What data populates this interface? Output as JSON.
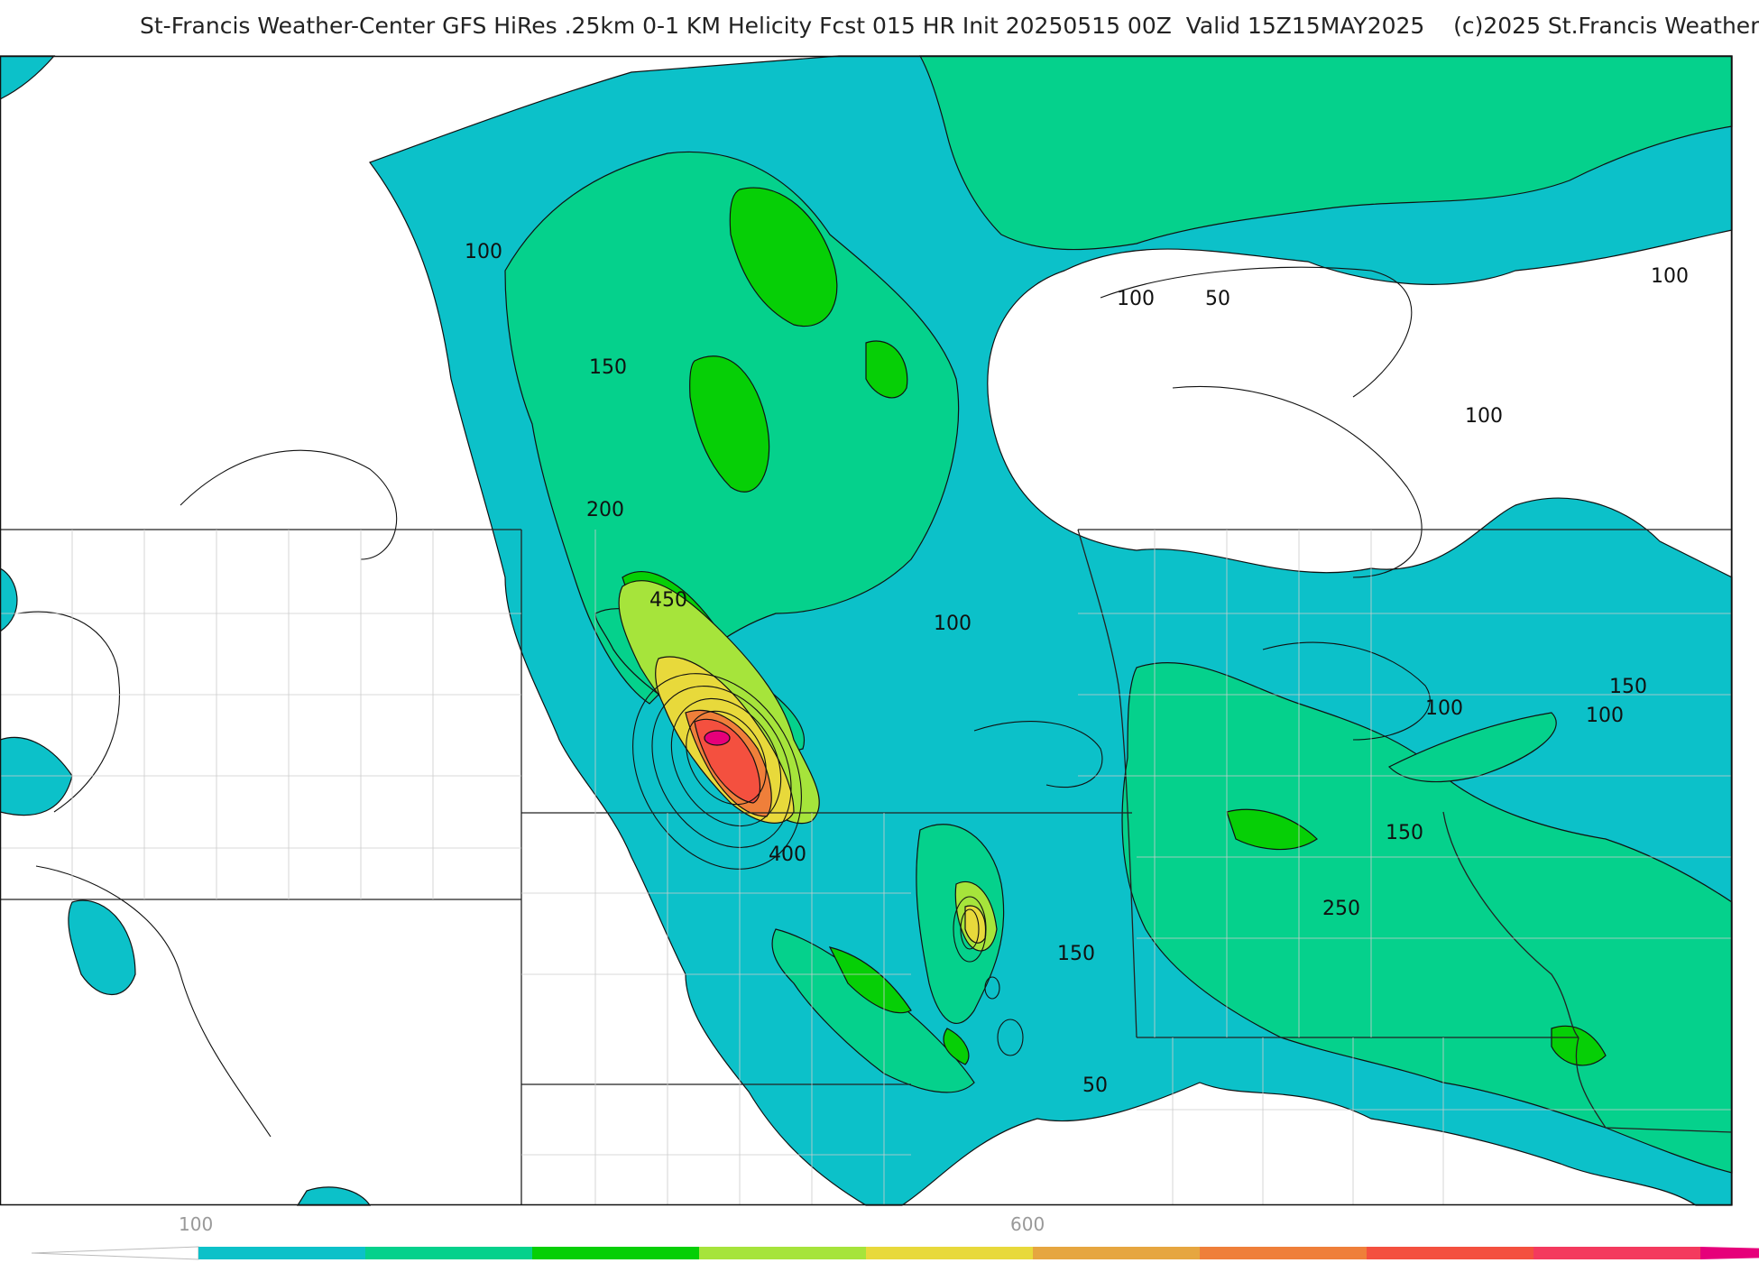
{
  "title": "St-Francis Weather-Center GFS HiRes .25km 0-1 KM Helicity Fcst 015 HR Init 20250515 00Z  Valid 15Z15MAY2025    (c)2025 St.Francis Weather",
  "contour_labels": [
    {
      "id": "l100a",
      "text": "100"
    },
    {
      "id": "l150a",
      "text": "150"
    },
    {
      "id": "l200a",
      "text": "200"
    },
    {
      "id": "l450",
      "text": "450"
    },
    {
      "id": "l400",
      "text": "400"
    },
    {
      "id": "l100b",
      "text": "100"
    },
    {
      "id": "l100c",
      "text": "100"
    },
    {
      "id": "l50a",
      "text": "50"
    },
    {
      "id": "l100d",
      "text": "100"
    },
    {
      "id": "l100e",
      "text": "100"
    },
    {
      "id": "l150b",
      "text": "150"
    },
    {
      "id": "l100f",
      "text": "100"
    },
    {
      "id": "l100g",
      "text": "100"
    },
    {
      "id": "l150c",
      "text": "150"
    },
    {
      "id": "l250",
      "text": "250"
    },
    {
      "id": "l150d",
      "text": "150"
    },
    {
      "id": "l50b",
      "text": "50"
    }
  ],
  "colorbar": {
    "labels": [
      "100",
      "600"
    ],
    "colors": [
      "#0cc1c9",
      "#05d18c",
      "#06cf06",
      "#a6e43b",
      "#e8d93b",
      "#e6a640",
      "#ef7f3a",
      "#f4503f",
      "#f43a5e",
      "#e6007a"
    ]
  }
}
